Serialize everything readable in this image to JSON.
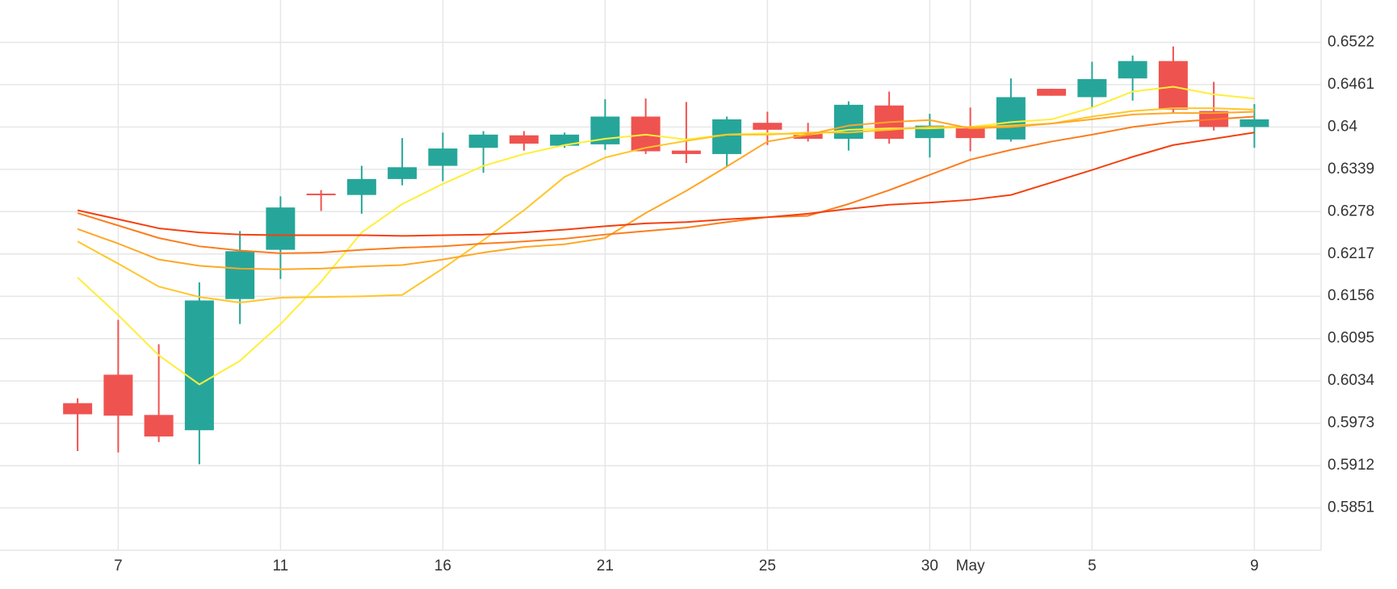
{
  "chart_data": {
    "type": "candlestick",
    "categories": [
      null,
      "7",
      null,
      null,
      null,
      "11",
      null,
      null,
      null,
      "16",
      null,
      null,
      null,
      "21",
      null,
      null,
      null,
      "25",
      null,
      null,
      null,
      "30",
      "May",
      null,
      null,
      "5",
      null,
      null,
      null,
      "9"
    ],
    "open": [
      0.6002,
      0.6043,
      0.5985,
      0.5963,
      0.6152,
      0.6223,
      0.6304,
      0.6302,
      0.6325,
      0.6344,
      0.637,
      0.6388,
      0.6373,
      0.6375,
      0.6415,
      0.6366,
      0.6361,
      0.6406,
      0.6391,
      0.6383,
      0.6431,
      0.6384,
      0.6398,
      0.6382,
      0.6455,
      0.6443,
      0.647,
      0.6495,
      0.6423,
      0.64
    ],
    "high": [
      0.6009,
      0.6122,
      0.6087,
      0.6176,
      0.625,
      0.63,
      0.6309,
      0.6344,
      0.6384,
      0.6392,
      0.6394,
      0.6394,
      0.6392,
      0.644,
      0.6441,
      0.6436,
      0.6415,
      0.6422,
      0.6406,
      0.6437,
      0.6451,
      0.6419,
      0.6428,
      0.647,
      0.6455,
      0.6494,
      0.6503,
      0.6516,
      0.6465,
      0.6433
    ],
    "low": [
      0.5933,
      0.5931,
      0.5946,
      0.5914,
      0.6116,
      0.6181,
      0.6279,
      0.6275,
      0.6316,
      0.6322,
      0.6334,
      0.6366,
      0.637,
      0.6367,
      0.6361,
      0.6348,
      0.6343,
      0.6374,
      0.6379,
      0.6366,
      0.6376,
      0.6356,
      0.6365,
      0.6379,
      0.6445,
      0.6428,
      0.6438,
      0.642,
      0.6395,
      0.637
    ],
    "close": [
      0.5986,
      0.5984,
      0.5954,
      0.615,
      0.6221,
      0.6284,
      0.6302,
      0.6325,
      0.6342,
      0.6369,
      0.6389,
      0.6376,
      0.6389,
      0.6415,
      0.6365,
      0.6361,
      0.6411,
      0.6396,
      0.6383,
      0.6432,
      0.6383,
      0.6402,
      0.6384,
      0.6443,
      0.6445,
      0.6469,
      0.6495,
      0.6425,
      0.64,
      0.6411
    ],
    "up_color": "#26a69a",
    "down_color": "#ef5350",
    "lines": [
      {
        "color": "#ffee3a",
        "values": [
          0.6183,
          0.6129,
          0.6071,
          0.6029,
          0.6063,
          0.6116,
          0.6177,
          0.6248,
          0.6289,
          0.6318,
          0.6344,
          0.6361,
          0.6374,
          0.6383,
          0.6389,
          0.6382,
          0.6389,
          0.6391,
          0.6389,
          0.6396,
          0.6398,
          0.6398,
          0.64,
          0.6407,
          0.6411,
          0.6428,
          0.6451,
          0.6458,
          0.6447,
          0.6441
        ]
      },
      {
        "color": "#ffc629",
        "values": [
          0.6235,
          0.6203,
          0.617,
          0.6155,
          0.6147,
          0.6154,
          0.6155,
          0.6156,
          0.6158,
          0.6196,
          0.6237,
          0.628,
          0.6328,
          0.6356,
          0.637,
          0.638,
          0.6389,
          0.6389,
          0.6392,
          0.6392,
          0.6396,
          0.64,
          0.64,
          0.6402,
          0.6405,
          0.6415,
          0.6423,
          0.6427,
          0.6427,
          0.6425
        ]
      },
      {
        "color": "#ffa726",
        "values": [
          0.6253,
          0.6232,
          0.6209,
          0.62,
          0.6196,
          0.6195,
          0.6196,
          0.6199,
          0.6201,
          0.6209,
          0.6219,
          0.6227,
          0.6231,
          0.624,
          0.6276,
          0.6308,
          0.6343,
          0.6379,
          0.6389,
          0.6402,
          0.6407,
          0.641,
          0.6398,
          0.64,
          0.6405,
          0.6411,
          0.6418,
          0.642,
          0.642,
          0.6422
        ]
      },
      {
        "color": "#fb7d1e",
        "values": [
          0.6276,
          0.6258,
          0.624,
          0.6228,
          0.6222,
          0.6218,
          0.6219,
          0.6223,
          0.6226,
          0.6228,
          0.6232,
          0.6235,
          0.6239,
          0.6245,
          0.625,
          0.6255,
          0.6263,
          0.627,
          0.6272,
          0.6289,
          0.6309,
          0.6331,
          0.6353,
          0.6367,
          0.6379,
          0.6389,
          0.64,
          0.6407,
          0.6411,
          0.6415
        ]
      },
      {
        "color": "#f4400e",
        "values": [
          0.628,
          0.6267,
          0.6254,
          0.6248,
          0.6245,
          0.6244,
          0.6244,
          0.6244,
          0.6243,
          0.6244,
          0.6245,
          0.6248,
          0.6252,
          0.6257,
          0.6261,
          0.6263,
          0.6267,
          0.627,
          0.6275,
          0.6282,
          0.6288,
          0.6291,
          0.6295,
          0.6302,
          0.632,
          0.6338,
          0.6357,
          0.6374,
          0.6383,
          0.6392
        ]
      }
    ],
    "ylim": [
      0.579,
      0.6583
    ],
    "yticks": [
      0.5851,
      0.5912,
      0.5973,
      0.6034,
      0.6095,
      0.6156,
      0.6217,
      0.6278,
      0.6339,
      0.64,
      0.6461,
      0.6522
    ],
    "grid": true
  }
}
